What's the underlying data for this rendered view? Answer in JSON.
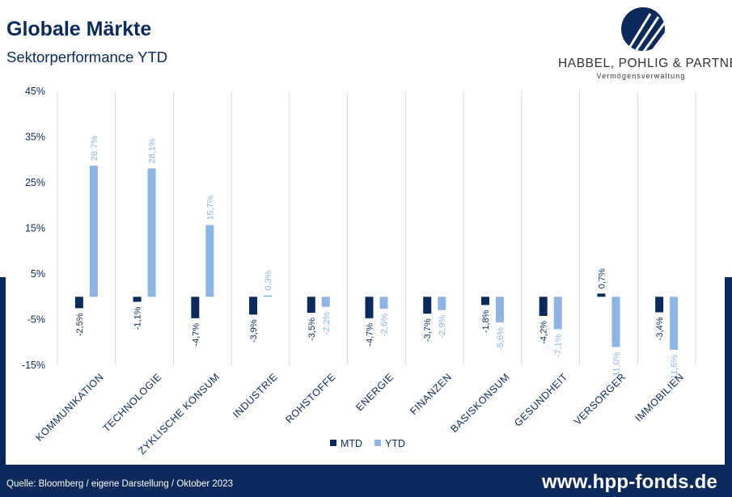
{
  "header": {
    "title": "Globale Märkte",
    "subtitle": "Sektorperformance YTD"
  },
  "logo": {
    "name": "HABBEL, POHLIG & PARTNER",
    "tagline": "Vermögensverwaltung",
    "icon": "diagonal-stripes-circle-icon",
    "color": "#0b2a5b"
  },
  "footer": {
    "source": "Quelle: Bloomberg / eigene Darstellung / Oktober 2023",
    "url": "www.hpp-fonds.de"
  },
  "colors": {
    "brand": "#0b2a5b",
    "mtd": "#0b2a5b",
    "ytd": "#8eb4e3",
    "grid": "#d9d9d9"
  },
  "chart_data": {
    "type": "bar",
    "categories": [
      "KOMMUNIKATION",
      "TECHNOLOGIE",
      "ZYKLISCHE KONSUM",
      "INDUSTRIE",
      "ROHSTOFFE",
      "ENERGIE",
      "FINANZEN",
      "BASISKONSUM",
      "GESUNDHEIT",
      "VERSORGER",
      "IMMOBILIEN"
    ],
    "series": [
      {
        "name": "MTD",
        "color": "#0b2a5b",
        "values": [
          -2.5,
          -1.1,
          -4.7,
          -3.9,
          -3.5,
          -4.7,
          -3.7,
          -1.8,
          -4.2,
          0.7,
          -3.4
        ],
        "labels": [
          "-2,5%",
          "-1,1%",
          "-4,7%",
          "-3,9%",
          "-3,5%",
          "-4,7%",
          "-3,7%",
          "-1,8%",
          "-4,2%",
          "0,7%",
          "-3,4%"
        ]
      },
      {
        "name": "YTD",
        "color": "#8eb4e3",
        "values": [
          28.7,
          28.1,
          15.7,
          0.3,
          -2.2,
          -2.6,
          -2.9,
          -5.6,
          -7.1,
          -11.0,
          -11.6
        ],
        "labels": [
          "28,7%",
          "28,1%",
          "15,7%",
          "0,3%",
          "-2,2%",
          "-2,6%",
          "-2,9%",
          "-5,6%",
          "-7,1%",
          "-11,0%",
          "-11,6%"
        ]
      }
    ],
    "ylim": [
      -15,
      45
    ],
    "yticks": [
      45,
      35,
      25,
      15,
      5,
      -5,
      -15
    ],
    "ytick_labels": [
      "45%",
      "35%",
      "25%",
      "15%",
      "5%",
      "-5%",
      "-15%"
    ],
    "grid": "vertical category separators",
    "legend": "bottom-center",
    "xlabel": "",
    "ylabel": ""
  }
}
